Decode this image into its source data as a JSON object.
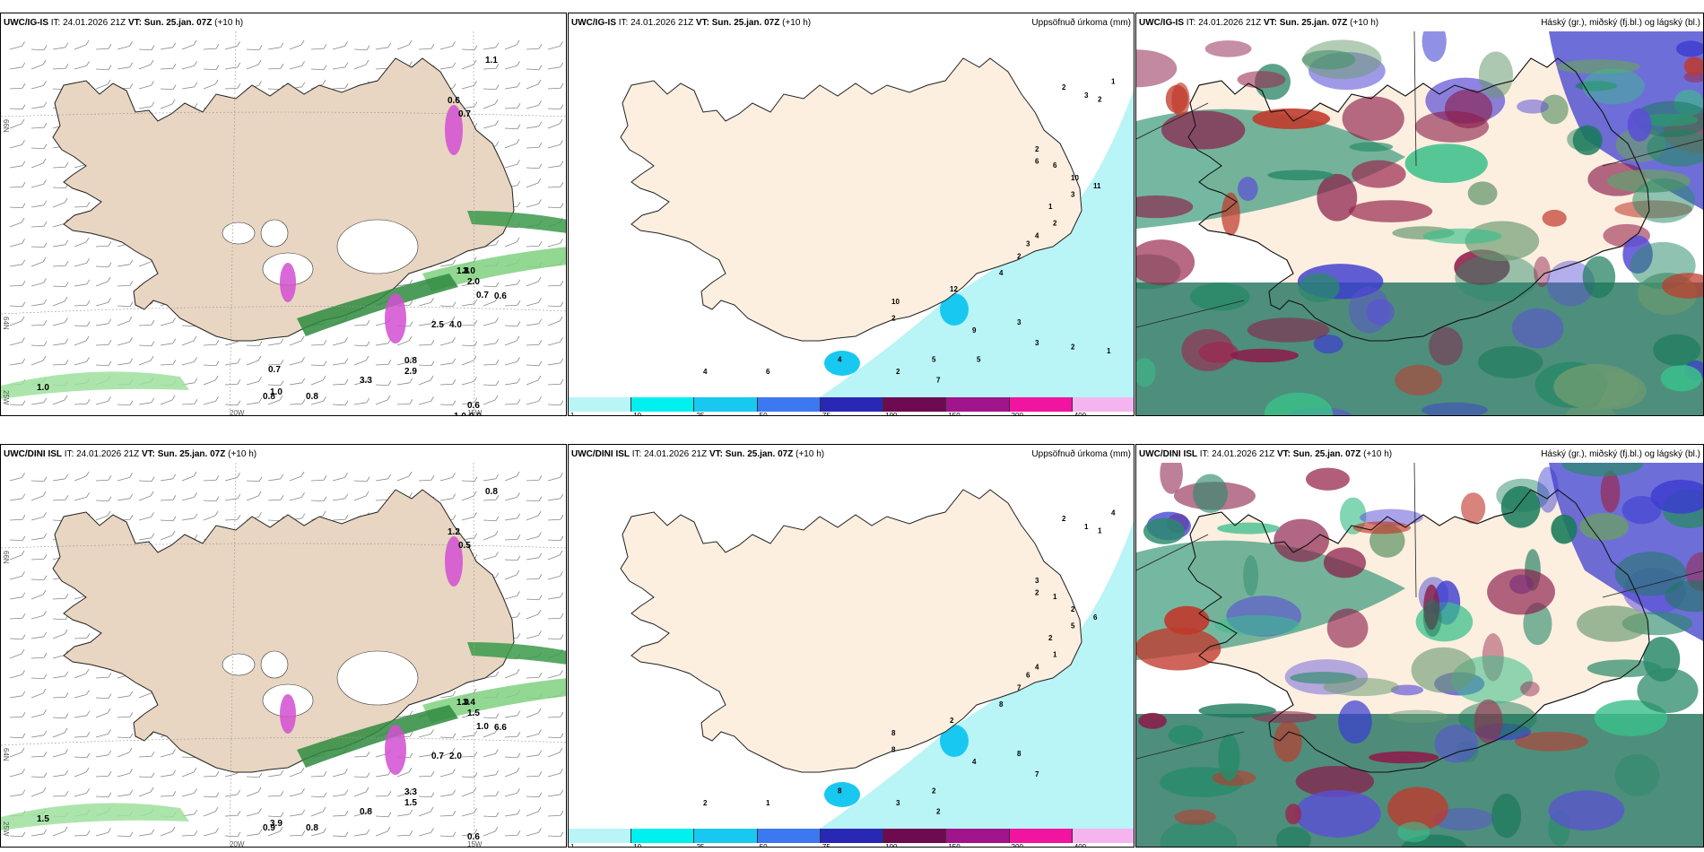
{
  "rows": [
    {
      "model": "UWC/IG-IS",
      "it_label": "IT:",
      "it": "24.01.2026 21Z",
      "vt_label": "VT:",
      "vt": "Sun. 25.jan. 07Z",
      "lead": "(+10 h)",
      "wind_values": [
        "1.1",
        "0.6",
        "0.7",
        "1.8",
        "3.0",
        "2.0",
        "0.7",
        "0.6",
        "2.5",
        "4.0",
        "0.8",
        "2.9",
        "3.3",
        "0.8",
        "1.0",
        "1.0",
        "0.8",
        "0.6",
        "0.9",
        "1.0",
        "0.9",
        "0.7"
      ],
      "precip_values": [
        "2",
        "3",
        "2",
        "1",
        "2",
        "6",
        "6",
        "10",
        "11",
        "3",
        "1",
        "2",
        "4",
        "3",
        "2",
        "4",
        "12",
        "10",
        "2",
        "9",
        "3",
        "3",
        "5",
        "7",
        "2",
        "4",
        "6",
        "4",
        "5",
        "2",
        "1"
      ]
    },
    {
      "model": "UWC/DINI ISL",
      "it_label": "IT:",
      "it": "24.01.2026 21Z",
      "vt_label": "VT:",
      "vt": "Sun. 25.jan. 07Z",
      "lead": "(+10 h)",
      "wind_values": [
        "0.8",
        "1.2",
        "0.5",
        "1.0",
        "3.4",
        "1.5",
        "1.0",
        "6.6",
        "0.7",
        "2.0",
        "3.3",
        "1.5",
        "0.8",
        "0.8",
        "3.9",
        "1.5",
        "0.9",
        "0.6"
      ],
      "precip_values": [
        "2",
        "1",
        "1",
        "4",
        "3",
        "2",
        "1",
        "2",
        "6",
        "5",
        "2",
        "1",
        "4",
        "6",
        "7",
        "8",
        "2",
        "8",
        "8",
        "4",
        "8",
        "7",
        "2",
        "2",
        "3",
        "8",
        "1",
        "2"
      ]
    }
  ],
  "precip_title": "Uppsöfnuð úrkoma (mm)",
  "cloud_title": "Háský (gr.), miðský (fj.bl.) og lágský (bl.)",
  "colorbar": {
    "labels": [
      "1",
      "10",
      "25",
      "50",
      "75",
      "100",
      "150",
      "200",
      "400"
    ],
    "colors": [
      "#b9f4f6",
      "#00f0f0",
      "#19c8f0",
      "#3c78f0",
      "#2828b4",
      "#6e0a50",
      "#a0148c",
      "#f014a0",
      "#f5b4f0"
    ]
  },
  "lat_labels": [
    "66N",
    "64N",
    "25W",
    "20W",
    "15W"
  ],
  "icons": {
    "map": "iceland-map-icon"
  }
}
